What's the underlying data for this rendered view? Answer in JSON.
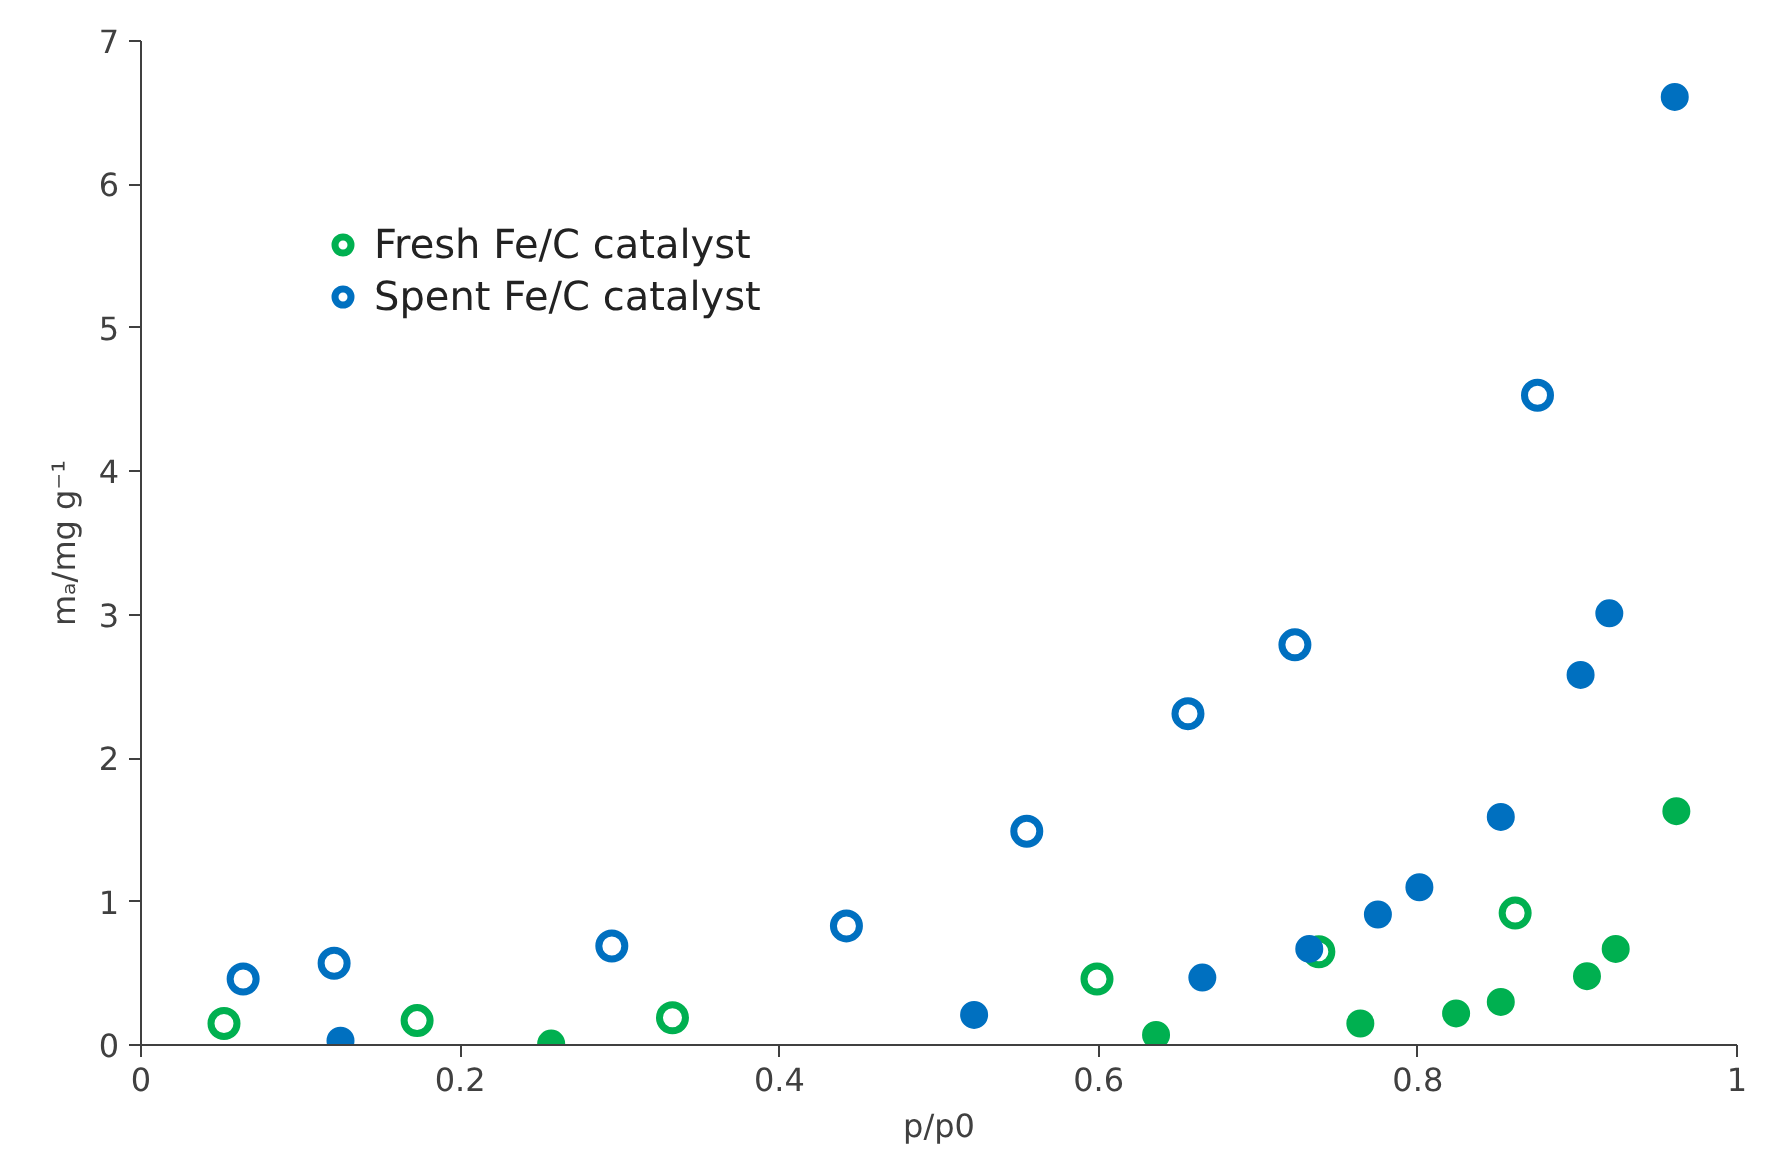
{
  "chart_data": {
    "type": "scatter",
    "xlabel": "p/p0",
    "ylabel": "mₐ/mg g⁻¹",
    "xlim": [
      0,
      1
    ],
    "ylim": [
      0,
      7
    ],
    "xticks": [
      0,
      0.2,
      0.4,
      0.6,
      0.8,
      1
    ],
    "yticks": [
      0,
      1,
      2,
      3,
      4,
      5,
      6,
      7
    ],
    "grid": false,
    "legend": "top left",
    "marker": "circle",
    "series": [
      {
        "name": "Fresh Fe/C catalyst",
        "color": "#00b050",
        "marker": "circle_open",
        "x": [
          0.052,
          0.173,
          0.333,
          0.599,
          0.738,
          0.861
        ],
        "values": [
          0.15,
          0.17,
          0.19,
          0.46,
          0.65,
          0.92
        ]
      },
      {
        "color": "#00b050",
        "x": [
          0.257,
          0.636,
          0.764,
          0.824,
          0.852,
          0.906,
          0.924,
          0.962
        ],
        "values": [
          0.01,
          0.07,
          0.15,
          0.22,
          0.3,
          0.48,
          0.67,
          1.63
        ]
      },
      {
        "name": "Spent Fe/C catalyst",
        "color": "#0070c0",
        "marker": "circle_open",
        "x": [
          0.064,
          0.121,
          0.295,
          0.442,
          0.555,
          0.656,
          0.723,
          0.875
        ],
        "values": [
          0.46,
          0.57,
          0.69,
          0.83,
          1.49,
          2.31,
          2.79,
          4.53
        ]
      },
      {
        "color": "#0070c0",
        "x": [
          0.125,
          0.522,
          0.665,
          0.732,
          0.775,
          0.801,
          0.852,
          0.902,
          0.92,
          0.961
        ],
        "values": [
          0.03,
          0.21,
          0.47,
          0.67,
          0.91,
          1.1,
          1.59,
          2.58,
          3.01,
          6.61
        ]
      }
    ]
  }
}
